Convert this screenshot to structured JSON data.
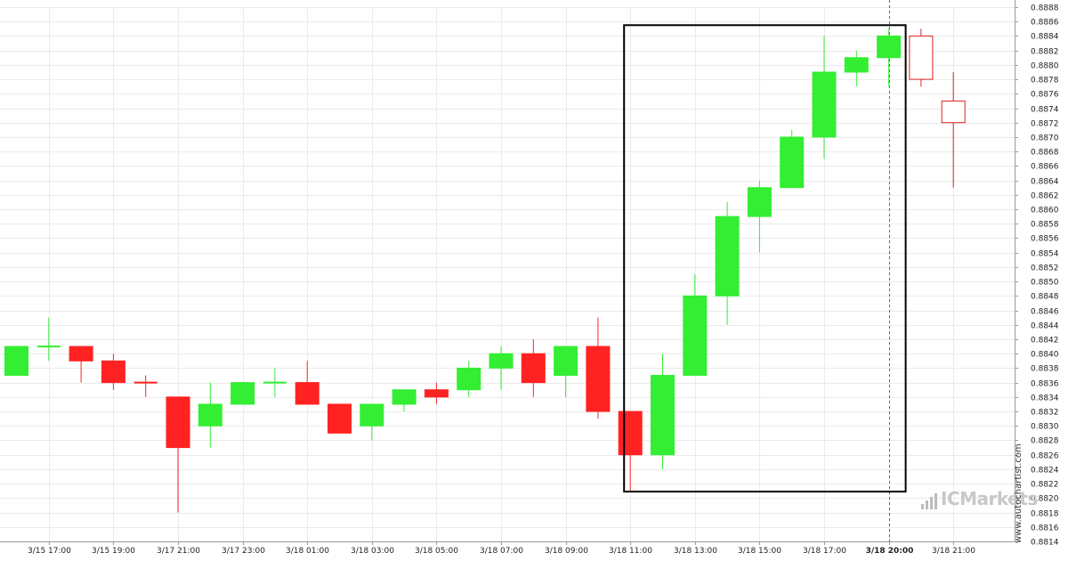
{
  "colors": {
    "bull": "#33ee33",
    "bear": "#ff2222",
    "bear_hollow_stroke": "#dd2222",
    "pattern_box": "#000000",
    "grid": "#ebebeb"
  },
  "brand": {
    "logo_text": "ICMarkets",
    "watermark": "www.autochartist.com"
  },
  "chart_data": {
    "type": "candlestick",
    "title": "",
    "xlabel": "",
    "ylabel": "",
    "ylim": [
      0.8814,
      0.8888
    ],
    "ytick_step": 0.0002,
    "grid": true,
    "y_axis_side": "right",
    "x_tick_labels": [
      "3/15 17:00",
      "3/15 19:00",
      "3/17 21:00",
      "3/17 23:00",
      "3/18 01:00",
      "3/18 03:00",
      "3/18 05:00",
      "3/18 07:00",
      "3/18 09:00",
      "3/18 11:00",
      "3/18 13:00",
      "3/18 15:00",
      "3/18 17:00",
      "3/18 20:00",
      "3/18 21:00"
    ],
    "highlighted_x_label": "3/18 20:00",
    "candles": [
      {
        "o": 0.8837,
        "h": 0.8841,
        "l": 0.8837,
        "c": 0.8841,
        "style": "bull"
      },
      {
        "o": 0.8841,
        "h": 0.8845,
        "l": 0.8839,
        "c": 0.8841,
        "style": "bull"
      },
      {
        "o": 0.8841,
        "h": 0.8841,
        "l": 0.8836,
        "c": 0.8839,
        "style": "bear"
      },
      {
        "o": 0.8839,
        "h": 0.884,
        "l": 0.8835,
        "c": 0.8836,
        "style": "bear"
      },
      {
        "o": 0.8836,
        "h": 0.8837,
        "l": 0.8834,
        "c": 0.8836,
        "style": "bear"
      },
      {
        "o": 0.8834,
        "h": 0.8834,
        "l": 0.8818,
        "c": 0.8827,
        "style": "bear"
      },
      {
        "o": 0.883,
        "h": 0.8836,
        "l": 0.8827,
        "c": 0.8833,
        "style": "bull"
      },
      {
        "o": 0.8833,
        "h": 0.8836,
        "l": 0.8833,
        "c": 0.8836,
        "style": "bull"
      },
      {
        "o": 0.8836,
        "h": 0.8838,
        "l": 0.8834,
        "c": 0.8836,
        "style": "bull"
      },
      {
        "o": 0.8836,
        "h": 0.8839,
        "l": 0.8833,
        "c": 0.8833,
        "style": "bear"
      },
      {
        "o": 0.8833,
        "h": 0.8833,
        "l": 0.8829,
        "c": 0.8829,
        "style": "bear"
      },
      {
        "o": 0.883,
        "h": 0.8833,
        "l": 0.8828,
        "c": 0.8833,
        "style": "bull"
      },
      {
        "o": 0.8833,
        "h": 0.8835,
        "l": 0.8832,
        "c": 0.8835,
        "style": "bull"
      },
      {
        "o": 0.8835,
        "h": 0.8836,
        "l": 0.8833,
        "c": 0.8834,
        "style": "bear"
      },
      {
        "o": 0.8835,
        "h": 0.8839,
        "l": 0.8834,
        "c": 0.8838,
        "style": "bull"
      },
      {
        "o": 0.8838,
        "h": 0.8841,
        "l": 0.8835,
        "c": 0.884,
        "style": "bull"
      },
      {
        "o": 0.884,
        "h": 0.8842,
        "l": 0.8834,
        "c": 0.8836,
        "style": "bear"
      },
      {
        "o": 0.8837,
        "h": 0.8841,
        "l": 0.8834,
        "c": 0.8841,
        "style": "bull"
      },
      {
        "o": 0.8841,
        "h": 0.8845,
        "l": 0.8831,
        "c": 0.8832,
        "style": "bear"
      },
      {
        "o": 0.8832,
        "h": 0.8832,
        "l": 0.8821,
        "c": 0.8826,
        "style": "bear"
      },
      {
        "o": 0.8826,
        "h": 0.884,
        "l": 0.8824,
        "c": 0.8837,
        "style": "bull"
      },
      {
        "o": 0.8837,
        "h": 0.8851,
        "l": 0.8837,
        "c": 0.8848,
        "style": "bull"
      },
      {
        "o": 0.8848,
        "h": 0.8861,
        "l": 0.8844,
        "c": 0.8859,
        "style": "bull"
      },
      {
        "o": 0.8859,
        "h": 0.8864,
        "l": 0.8854,
        "c": 0.8863,
        "style": "bull"
      },
      {
        "o": 0.8863,
        "h": 0.8871,
        "l": 0.8863,
        "c": 0.887,
        "style": "bull"
      },
      {
        "o": 0.887,
        "h": 0.8884,
        "l": 0.8867,
        "c": 0.8879,
        "style": "bull"
      },
      {
        "o": 0.8879,
        "h": 0.8882,
        "l": 0.8877,
        "c": 0.8881,
        "style": "bull"
      },
      {
        "o": 0.8881,
        "h": 0.8885,
        "l": 0.8877,
        "c": 0.8884,
        "style": "bull"
      },
      {
        "o": 0.8884,
        "h": 0.8885,
        "l": 0.8877,
        "c": 0.8878,
        "style": "bear_hollow"
      },
      {
        "o": 0.8875,
        "h": 0.8879,
        "l": 0.8863,
        "c": 0.8872,
        "style": "bear_hollow"
      }
    ],
    "pattern_box": {
      "from_index": 19,
      "to_index": 27,
      "top": 0.88855,
      "bottom": 0.88209
    },
    "current_time_line_index": 27
  }
}
